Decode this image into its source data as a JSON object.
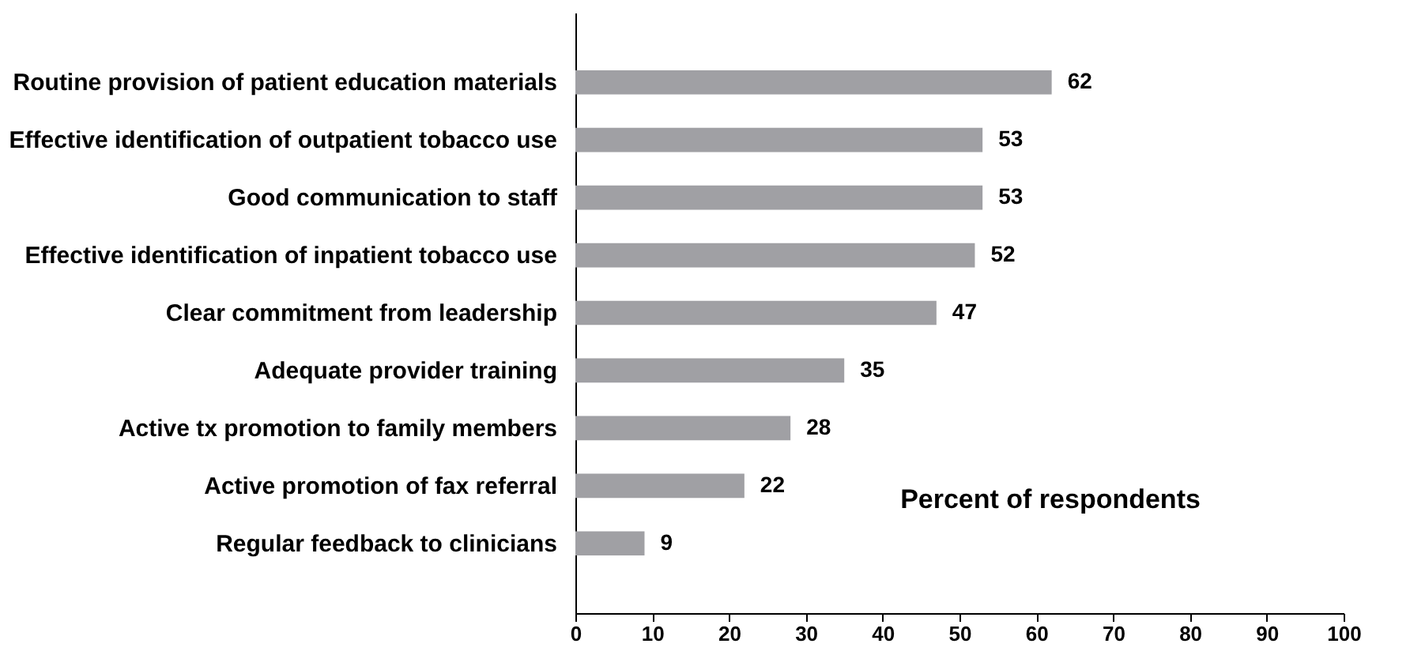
{
  "chart_data": {
    "type": "bar",
    "orientation": "horizontal",
    "xlabel": "Percent of respondents",
    "categories": [
      "Routine provision of patient education materials",
      "Effective identification of outpatient tobacco use",
      "Good communication to staff",
      "Effective identification of inpatient tobacco use",
      "Clear commitment from leadership",
      "Adequate provider training",
      "Active tx promotion to family members",
      "Active promotion of fax referral",
      "Regular feedback to clinicians"
    ],
    "values": [
      62,
      53,
      53,
      52,
      47,
      35,
      28,
      22,
      9
    ],
    "color": "#a0a0a4",
    "xlim": [
      0,
      100
    ],
    "xticks": [
      0,
      10,
      20,
      30,
      40,
      50,
      60,
      70,
      80,
      90,
      100
    ],
    "grid": false,
    "data_labels": true
  }
}
